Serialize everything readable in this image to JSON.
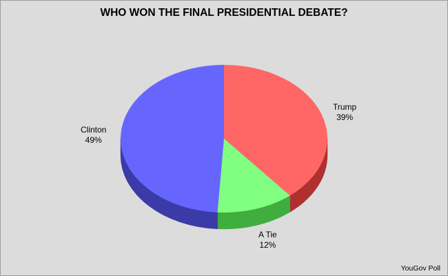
{
  "chart_data": {
    "type": "pie",
    "title": "WHO WON THE FINAL PRESIDENTIAL DEBATE?",
    "slices": [
      {
        "label": "Trump",
        "value": 39,
        "display": "39%",
        "color": "#ff6666",
        "side_color": "#b03030"
      },
      {
        "label": "A Tie",
        "value": 12,
        "display": "12%",
        "color": "#80ff80",
        "side_color": "#3fae3f"
      },
      {
        "label": "Clinton",
        "value": 49,
        "display": "49%",
        "color": "#6666ff",
        "side_color": "#3a3aa8"
      }
    ],
    "source": "YouGov Poll",
    "three_d": true
  }
}
